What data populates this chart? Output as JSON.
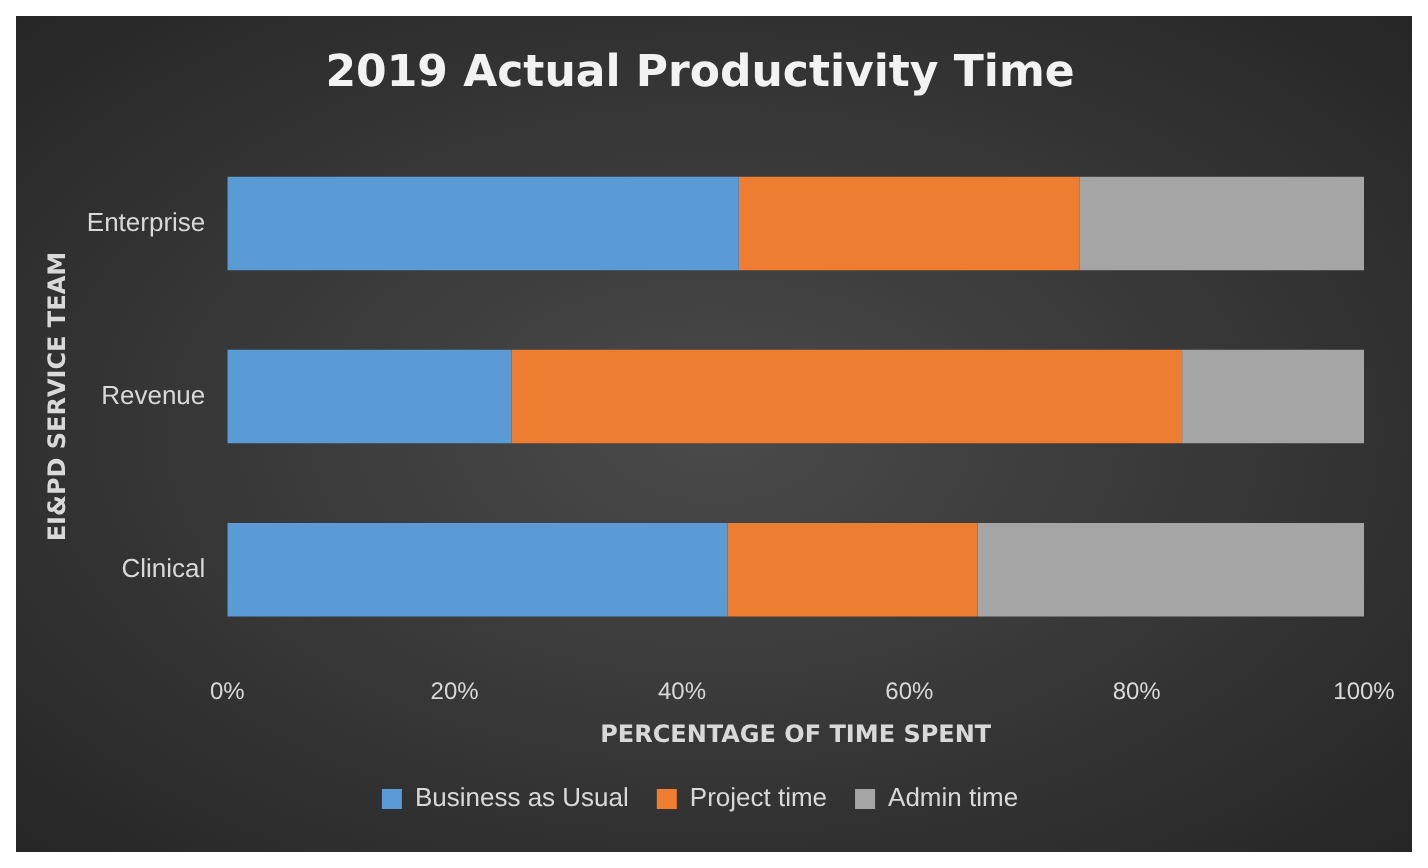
{
  "chart_data": {
    "type": "bar",
    "orientation": "horizontal",
    "stacked": true,
    "title": "2019 Actual Productivity Time",
    "xlabel": "PERCENTAGE OF TIME SPENT",
    "ylabel": "EI&PD SERVICE TEAM",
    "categories": [
      "Enterprise",
      "Revenue",
      "Clinical"
    ],
    "series": [
      {
        "name": "Business as Usual",
        "color": "#5b9bd5",
        "values": [
          45,
          25,
          44
        ]
      },
      {
        "name": "Project time",
        "color": "#ed7d31",
        "values": [
          30,
          59,
          22
        ]
      },
      {
        "name": "Admin time",
        "color": "#a5a5a5",
        "values": [
          25,
          16,
          34
        ]
      }
    ],
    "xlim": [
      0,
      100
    ],
    "xticks": [
      {
        "value": 0,
        "label": "0%"
      },
      {
        "value": 20,
        "label": "20%"
      },
      {
        "value": 40,
        "label": "40%"
      },
      {
        "value": 60,
        "label": "60%"
      },
      {
        "value": 80,
        "label": "80%"
      },
      {
        "value": 100,
        "label": "100%"
      }
    ],
    "grid": false,
    "legend": "bottom"
  }
}
